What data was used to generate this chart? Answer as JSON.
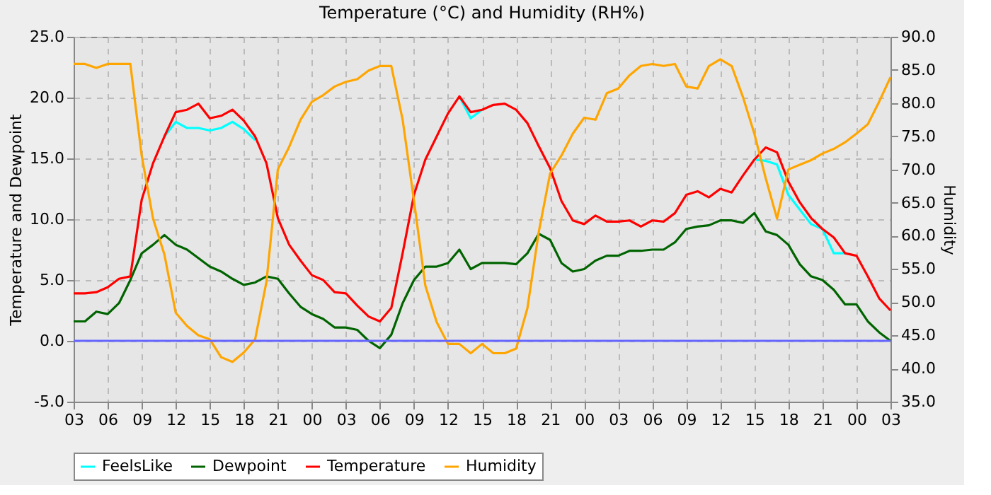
{
  "chart_data": {
    "type": "line",
    "title": "Temperature (°C) and Humidity (RH%)",
    "ylabel": "Temperature and Dewpoint",
    "y2label": "Humidity",
    "categories": [
      "03",
      null,
      null,
      "06",
      null,
      null,
      "09",
      null,
      null,
      "12",
      null,
      null,
      "15",
      null,
      null,
      "18",
      null,
      null,
      "21",
      null,
      null,
      "00",
      null,
      null,
      "03",
      null,
      null,
      "06",
      null,
      null,
      "09",
      null,
      null,
      "12",
      null,
      null,
      "15",
      null,
      null,
      "18",
      null,
      null,
      "21",
      null,
      null,
      "00",
      null,
      null,
      "03",
      null,
      null,
      "06",
      null,
      null,
      "09",
      null,
      null,
      "12",
      null,
      null,
      "15",
      null,
      null,
      "18",
      null,
      null,
      "21",
      null,
      null,
      "00",
      null,
      null,
      "03"
    ],
    "series": [
      {
        "name": "FeelsLike",
        "color": "#00ffff",
        "values": [
          null,
          null,
          null,
          null,
          null,
          null,
          null,
          null,
          16.8,
          18.0,
          17.5,
          17.5,
          17.3,
          17.5,
          18.0,
          17.4,
          16.5,
          null,
          null,
          null,
          null,
          null,
          null,
          null,
          null,
          null,
          null,
          null,
          null,
          null,
          null,
          null,
          null,
          null,
          20.1,
          18.3,
          19.0,
          null,
          null,
          null,
          null,
          null,
          null,
          null,
          null,
          null,
          null,
          null,
          null,
          null,
          null,
          null,
          null,
          null,
          null,
          null,
          null,
          null,
          null,
          null,
          14.9,
          14.8,
          14.5,
          12.0,
          10.8,
          9.6,
          9.2,
          7.2,
          7.2,
          null,
          null,
          null,
          null
        ]
      },
      {
        "name": "Dewpoint",
        "color": "#006400",
        "values": [
          1.6,
          1.6,
          2.4,
          2.2,
          3.1,
          5.0,
          7.2,
          7.9,
          8.7,
          7.9,
          7.5,
          6.8,
          6.1,
          5.7,
          5.1,
          4.6,
          4.8,
          5.3,
          5.1,
          3.9,
          2.8,
          2.2,
          1.8,
          1.1,
          1.1,
          0.9,
          0.0,
          -0.6,
          0.5,
          3.1,
          5.0,
          6.1,
          6.1,
          6.4,
          7.5,
          5.9,
          6.4,
          6.4,
          6.4,
          6.3,
          7.2,
          8.8,
          8.3,
          6.4,
          5.7,
          5.9,
          6.6,
          7.0,
          7.0,
          7.4,
          7.4,
          7.5,
          7.5,
          8.1,
          9.2,
          9.4,
          9.5,
          9.9,
          9.9,
          9.7,
          10.5,
          9.0,
          8.7,
          7.9,
          6.3,
          5.3,
          5.0,
          4.2,
          3.0,
          3.0,
          1.6,
          0.7,
          0.0
        ]
      },
      {
        "name": "Temperature",
        "color": "#ff0000",
        "values": [
          3.9,
          3.9,
          4.0,
          4.4,
          5.1,
          5.3,
          11.6,
          14.6,
          16.8,
          18.8,
          19.0,
          19.5,
          18.3,
          18.5,
          19.0,
          18.1,
          16.8,
          14.6,
          10.1,
          7.9,
          6.6,
          5.4,
          5.0,
          4.0,
          3.9,
          2.9,
          2.0,
          1.6,
          2.7,
          7.2,
          12.0,
          14.9,
          16.8,
          18.7,
          20.1,
          18.8,
          19.0,
          19.4,
          19.5,
          19.0,
          17.9,
          16.0,
          14.2,
          11.5,
          9.9,
          9.6,
          10.3,
          9.8,
          9.8,
          9.9,
          9.4,
          9.9,
          9.8,
          10.5,
          12.0,
          12.3,
          11.8,
          12.5,
          12.2,
          13.6,
          14.9,
          15.9,
          15.5,
          13.1,
          11.4,
          10.1,
          9.2,
          8.5,
          7.2,
          7.0,
          5.3,
          3.5,
          2.5
        ]
      },
      {
        "name": "Humidity",
        "color": "#ffa500",
        "axis": "y2",
        "values": [
          85.9,
          85.9,
          85.3,
          85.9,
          85.9,
          85.9,
          72.1,
          62.6,
          57.2,
          48.4,
          46.4,
          45.0,
          44.4,
          41.7,
          41.0,
          42.4,
          44.4,
          53.1,
          70.0,
          73.4,
          77.5,
          80.2,
          81.2,
          82.5,
          83.2,
          83.6,
          84.9,
          85.6,
          85.6,
          77.5,
          65.3,
          52.5,
          47.0,
          43.7,
          43.7,
          42.3,
          43.7,
          42.3,
          42.3,
          43.0,
          49.1,
          60.6,
          69.4,
          72.1,
          75.4,
          77.8,
          77.5,
          81.5,
          82.2,
          84.2,
          85.6,
          85.9,
          85.6,
          85.9,
          82.5,
          82.2,
          85.6,
          86.6,
          85.6,
          80.9,
          75.4,
          68.7,
          62.6,
          70.0,
          70.7,
          71.4,
          72.4,
          73.1,
          74.1,
          75.4,
          76.8,
          80.2,
          83.9
        ]
      }
    ],
    "ylim": [
      -5,
      25
    ],
    "yticks": [
      {
        "value": -5,
        "label": "-5.0"
      },
      {
        "value": 0,
        "label": "0.0"
      },
      {
        "value": 5,
        "label": "5.0"
      },
      {
        "value": 10,
        "label": "10.0"
      },
      {
        "value": 15,
        "label": "15.0"
      },
      {
        "value": 20,
        "label": "20.0"
      },
      {
        "value": 25,
        "label": "25.0"
      }
    ],
    "y2lim": [
      35,
      90
    ],
    "y2ticks": [
      {
        "value": 35,
        "label": "35.0"
      },
      {
        "value": 40,
        "label": "40.0"
      },
      {
        "value": 45,
        "label": "45.0"
      },
      {
        "value": 50,
        "label": "50.0"
      },
      {
        "value": 55,
        "label": "55.0"
      },
      {
        "value": 60,
        "label": "60.0"
      },
      {
        "value": 65,
        "label": "65.0"
      },
      {
        "value": 70,
        "label": "70.0"
      },
      {
        "value": 75,
        "label": "75.0"
      },
      {
        "value": 80,
        "label": "80.0"
      },
      {
        "value": 85,
        "label": "85.0"
      },
      {
        "value": 90,
        "label": "90.0"
      }
    ],
    "ref_lines": [
      {
        "axis": "y",
        "value": 0,
        "color": "#6666ff"
      }
    ],
    "grid": true,
    "legend": "bottom",
    "marker": "none",
    "line_style": "solid"
  }
}
